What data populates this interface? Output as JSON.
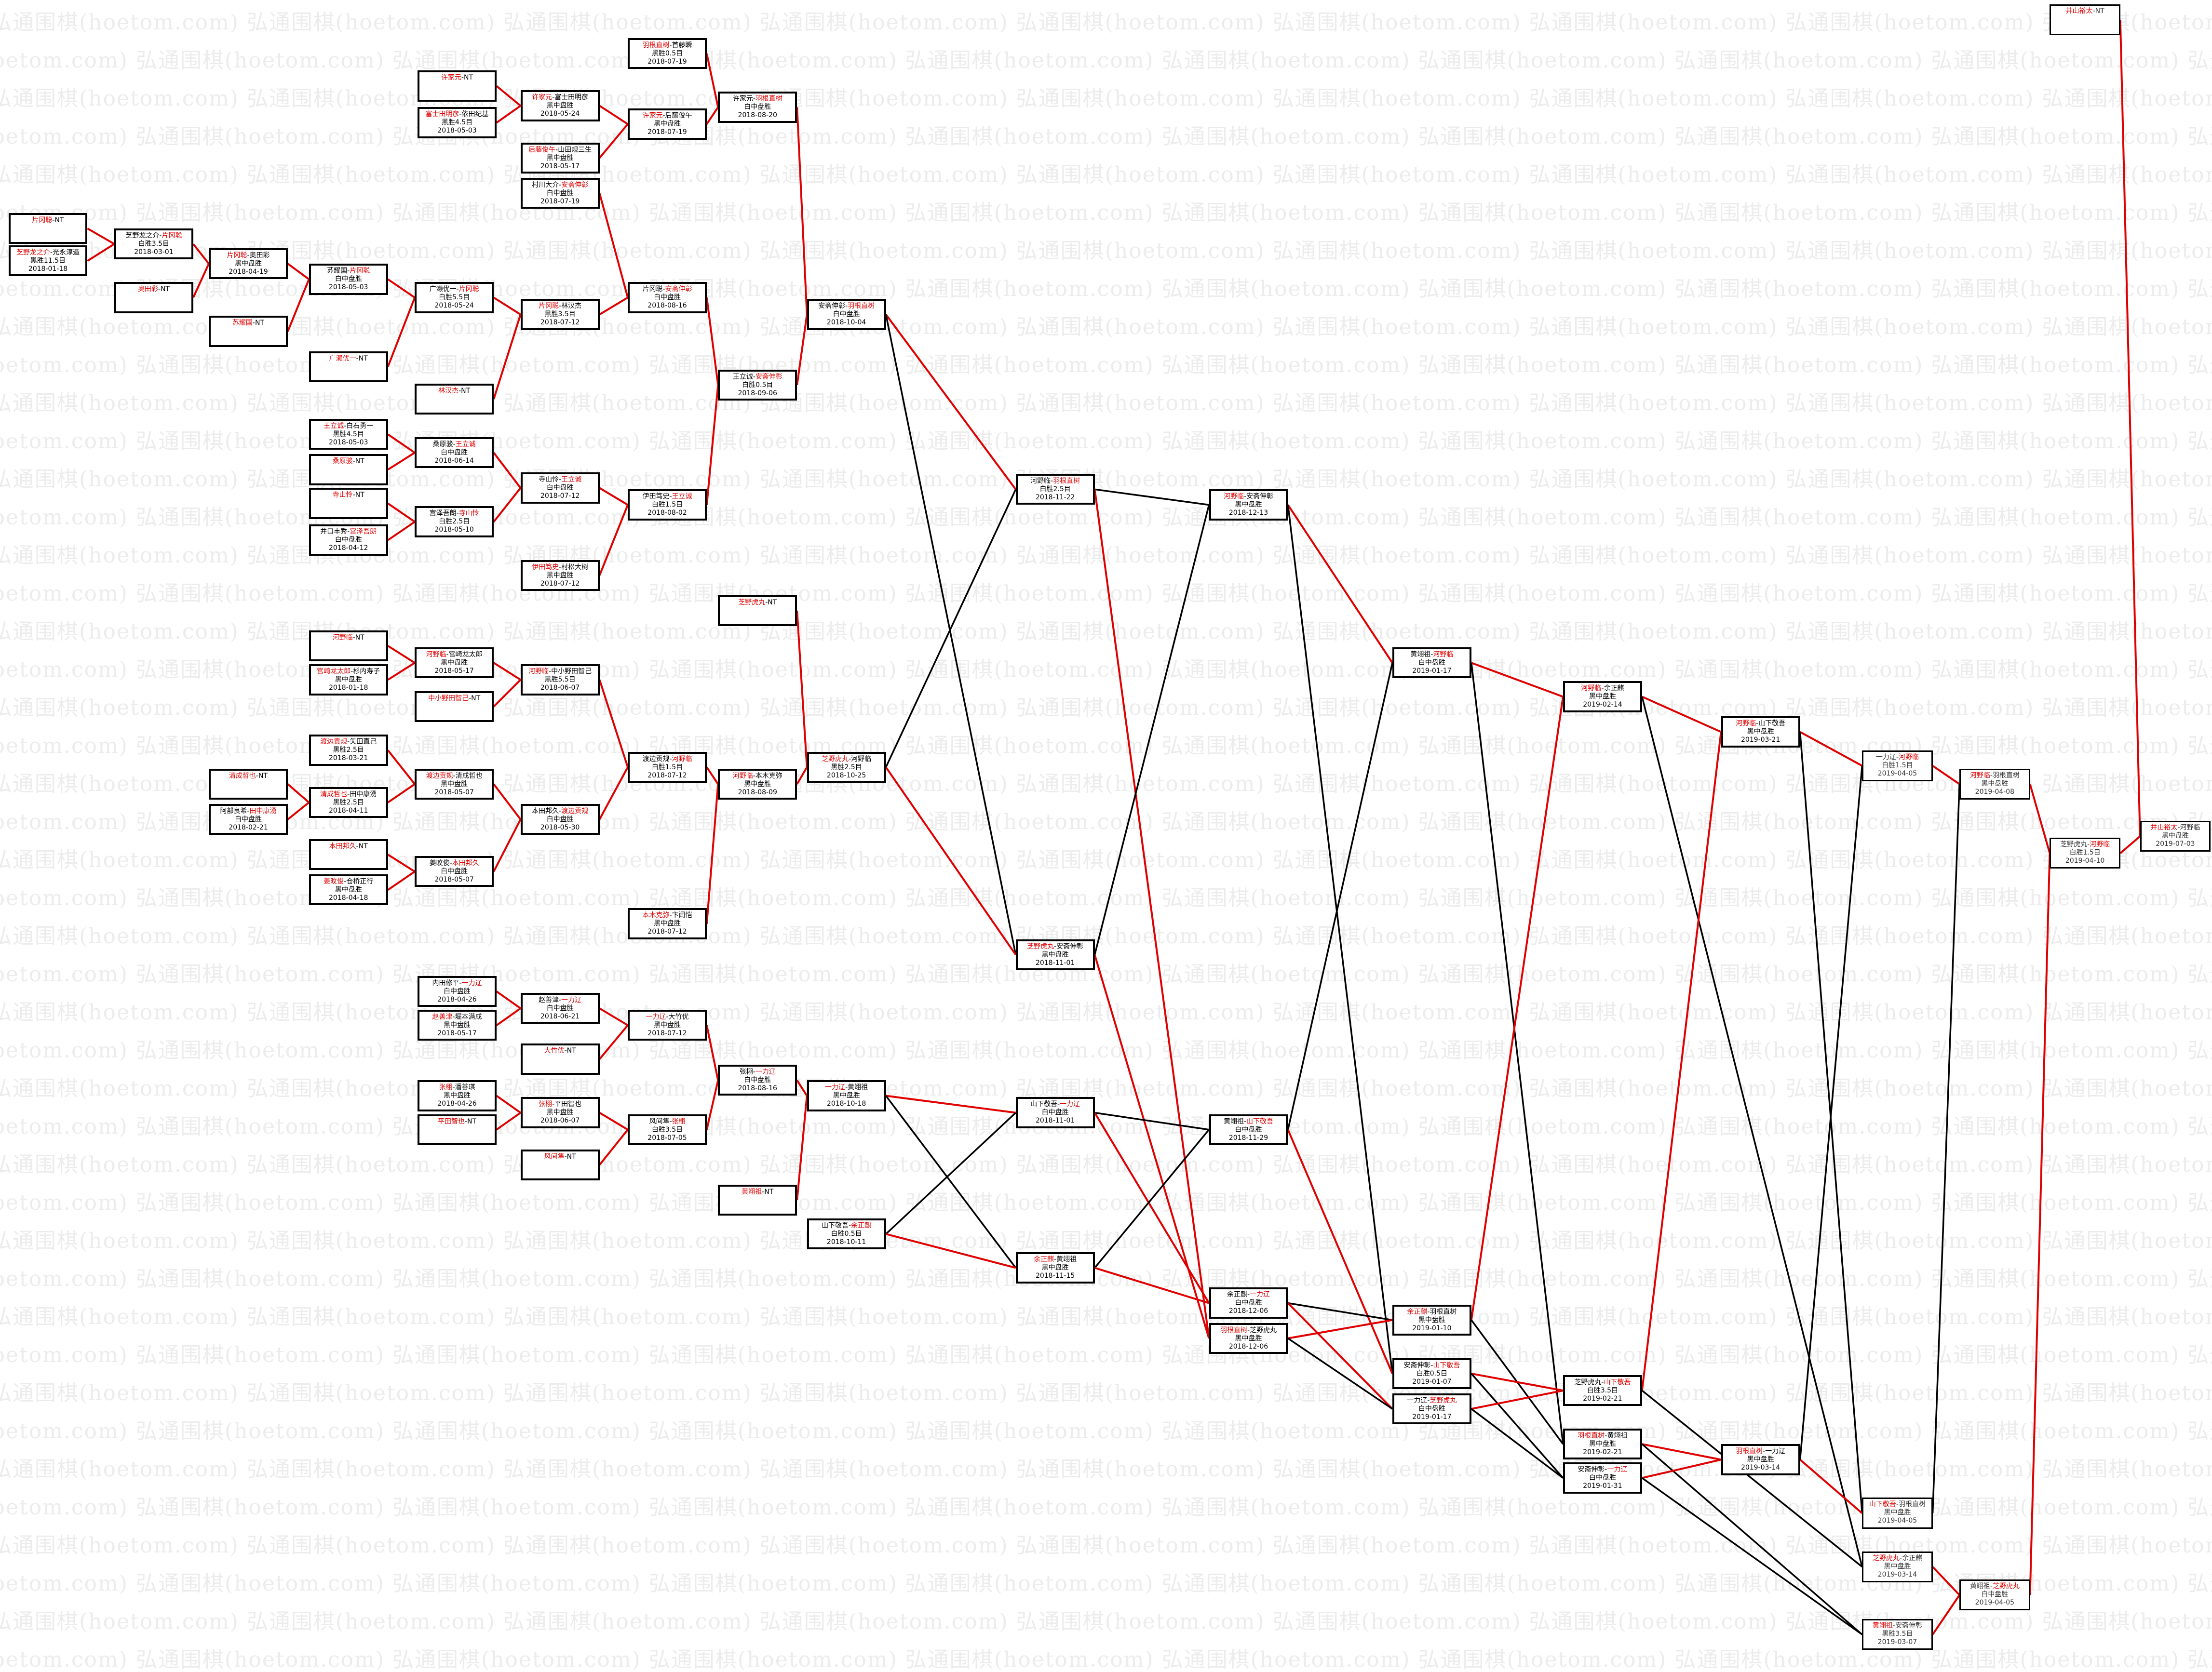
{
  "watermark": "弘通围棋(hoetom.com)",
  "colors": {
    "winner_path": "#e00000",
    "loser_path": "#000000",
    "box_border": "#000000"
  },
  "matches": {
    "a1": {
      "a": "片冈聪",
      "b": "NT",
      "red": 0
    },
    "a2": {
      "a": "芝野龙之介",
      "b": "光永淳造",
      "red": 0,
      "result": "黑胜11.5目",
      "date": "2018-01-18"
    },
    "b1": {
      "a": "芝野龙之介",
      "b": "片冈聪",
      "red": 1,
      "result": "白胜3.5目",
      "date": "2018-03-01"
    },
    "b2": {
      "a": "奥田彩",
      "b": "NT",
      "red": 0
    },
    "c1": {
      "a": "片冈聪",
      "b": "奥田彩",
      "red": 0,
      "result": "黑中盘胜",
      "date": "2018-04-19"
    },
    "c2": {
      "a": "苏耀国",
      "b": "NT",
      "red": 0
    },
    "d1": {
      "a": "苏耀国",
      "b": "片冈聪",
      "red": 1,
      "result": "白中盘胜",
      "date": "2018-05-03"
    },
    "d2": {
      "a": "广濑优一",
      "b": "NT",
      "red": 0
    },
    "e1": {
      "a": "广濑优一",
      "b": "片冈聪",
      "red": 1,
      "result": "白胜5.5目",
      "date": "2018-05-24"
    },
    "e2": {
      "a": "林汉杰",
      "b": "NT",
      "red": 0
    },
    "x1": {
      "a": "许家元",
      "b": "NT",
      "red": 0
    },
    "x2": {
      "a": "富士田明彦",
      "b": "依田纪基",
      "red": 0,
      "result": "黑胜4.5目",
      "date": "2018-05-03"
    },
    "f1": {
      "a": "许家元",
      "b": "富士田明彦",
      "red": 0,
      "result": "黑中盘胜",
      "date": "2018-05-24"
    },
    "f2": {
      "a": "后藤俊午",
      "b": "山田规三生",
      "red": 0,
      "result": "黑中盘胜",
      "date": "2018-05-17"
    },
    "f3": {
      "a": "村川大介",
      "b": "安斋伸彰",
      "red": 1,
      "result": "白中盘胜",
      "date": "2018-07-19"
    },
    "f4": {
      "a": "片冈聪",
      "b": "林汉杰",
      "red": 0,
      "result": "黑胜3.5目",
      "date": "2018-07-12"
    },
    "g1": {
      "a": "羽根直树",
      "b": "首藤瞬",
      "red": 0,
      "result": "黑胜0.5目",
      "date": "2018-07-19"
    },
    "g2": {
      "a": "许家元",
      "b": "后藤俊午",
      "red": 0,
      "result": "黑中盘胜",
      "date": "2018-07-19"
    },
    "g3": {
      "a": "片冈聪",
      "b": "安斋伸彰",
      "red": 1,
      "result": "白中盘胜",
      "date": "2018-08-16"
    },
    "h1": {
      "a": "许家元",
      "b": "羽根直树",
      "red": 1,
      "result": "白中盘胜",
      "date": "2018-08-20"
    },
    "h2": {
      "a": "王立诚",
      "b": "安斋伸彰",
      "red": 1,
      "result": "白胜0.5目",
      "date": "2018-09-06"
    },
    "i1": {
      "a": "安斋伸彰",
      "b": "羽根直树",
      "red": 1,
      "result": "白中盘胜",
      "date": "2018-10-04"
    },
    "w1": {
      "a": "王立诚",
      "b": "白石勇一",
      "red": 0,
      "result": "黑胜4.5目",
      "date": "2018-05-03"
    },
    "w2": {
      "a": "桑原骏",
      "b": "NT",
      "red": 0
    },
    "w3": {
      "a": "寺山怜",
      "b": "NT",
      "red": 0
    },
    "w4": {
      "a": "井口丰秀",
      "b": "宫泽吾朗",
      "red": 1,
      "result": "白中盘胜",
      "date": "2018-04-12"
    },
    "w5": {
      "a": "桑原骏",
      "b": "王立诚",
      "red": 1,
      "result": "白中盘胜",
      "date": "2018-06-14"
    },
    "w6": {
      "a": "宫泽吾朗",
      "b": "寺山怜",
      "red": 1,
      "result": "白胜2.5目",
      "date": "2018-05-10"
    },
    "w7": {
      "a": "寺山怜",
      "b": "王立诚",
      "red": 1,
      "result": "白中盘胜",
      "date": "2018-07-12"
    },
    "w8": {
      "a": "伊田笃史",
      "b": "村松大树",
      "red": 0,
      "result": "黑中盘胜",
      "date": "2018-07-12"
    },
    "w9": {
      "a": "伊田笃史",
      "b": "王立诚",
      "red": 1,
      "result": "白胜1.5目",
      "date": "2018-08-02"
    },
    "k1": {
      "a": "河野临",
      "b": "NT",
      "red": 0
    },
    "k2": {
      "a": "宫崎龙太郎",
      "b": "杉内寿子",
      "red": 0,
      "result": "黑中盘胜",
      "date": "2018-01-18"
    },
    "k3": {
      "a": "河野临",
      "b": "宫崎龙太郎",
      "red": 0,
      "result": "黑中盘胜",
      "date": "2018-05-17"
    },
    "k4": {
      "a": "中小野田智己",
      "b": "NT",
      "red": 0
    },
    "k5": {
      "a": "河野临",
      "b": "中小野田智己",
      "red": 0,
      "result": "黑胜5.5目",
      "date": "2018-06-07"
    },
    "k6": {
      "a": "渡边贡规",
      "b": "矢田直己",
      "red": 0,
      "result": "黑胜2.5目",
      "date": "2018-03-21"
    },
    "k7": {
      "a": "清成哲也",
      "b": "NT",
      "red": 0
    },
    "k8": {
      "a": "阿部良希",
      "b": "田中康湧",
      "red": 1,
      "result": "白中盘胜",
      "date": "2018-02-21"
    },
    "k9": {
      "a": "清成哲也",
      "b": "田中康湧",
      "red": 0,
      "result": "黑胜2.5目",
      "date": "2018-04-11"
    },
    "k10": {
      "a": "渡边贡规",
      "b": "清成哲也",
      "red": 0,
      "result": "黑中盘胜",
      "date": "2018-05-07"
    },
    "k11": {
      "a": "本田邦久",
      "b": "NT",
      "red": 0
    },
    "k12": {
      "a": "姜旼俊",
      "b": "仓桥正行",
      "red": 0,
      "result": "黑中盘胜",
      "date": "2018-04-18"
    },
    "k13": {
      "a": "姜旼俊",
      "b": "本田邦久",
      "red": 1,
      "result": "白中盘胜",
      "date": "2018-05-07"
    },
    "k14": {
      "a": "本田邦久",
      "b": "渡边贡规",
      "red": 1,
      "result": "白中盘胜",
      "date": "2018-05-30"
    },
    "k15": {
      "a": "渡边贡规",
      "b": "河野临",
      "red": 1,
      "result": "白胜1.5目",
      "date": "2018-07-12"
    },
    "k16": {
      "a": "本木克弥",
      "b": "卞闻恺",
      "red": 0,
      "result": "黑中盘胜",
      "date": "2018-07-12"
    },
    "k17": {
      "a": "河野临",
      "b": "本木克弥",
      "red": 0,
      "result": "黑中盘胜",
      "date": "2018-08-09"
    },
    "k18": {
      "a": "芝野虎丸",
      "b": "NT",
      "red": 0
    },
    "k19": {
      "a": "芝野虎丸",
      "b": "河野临",
      "red": 0,
      "result": "黑胜2.5目",
      "date": "2018-10-25"
    },
    "y1": {
      "a": "内田修平",
      "b": "一力辽",
      "red": 1,
      "result": "白中盘胜",
      "date": "2018-04-26"
    },
    "y2": {
      "a": "赵善津",
      "b": "堀本满成",
      "red": 0,
      "result": "黑中盘胜",
      "date": "2018-05-17"
    },
    "y3": {
      "a": "赵善津",
      "b": "一力辽",
      "red": 1,
      "result": "白中盘胜",
      "date": "2018-06-21"
    },
    "y4": {
      "a": "大竹优",
      "b": "NT",
      "red": 0
    },
    "y5": {
      "a": "一力辽",
      "b": "大竹优",
      "red": 0,
      "result": "黑中盘胜",
      "date": "2018-07-12"
    },
    "y6": {
      "a": "张栩",
      "b": "潘善琪",
      "red": 0,
      "result": "黑中盘胜",
      "date": "2018-04-26"
    },
    "y7": {
      "a": "平田智也",
      "b": "NT",
      "red": 0
    },
    "y8": {
      "a": "张栩",
      "b": "平田智也",
      "red": 0,
      "result": "黑中盘胜",
      "date": "2018-06-07"
    },
    "y9": {
      "a": "风间隼",
      "b": "NT",
      "red": 0
    },
    "y10": {
      "a": "风间隼",
      "b": "张栩",
      "red": 1,
      "result": "白胜3.5目",
      "date": "2018-07-05"
    },
    "y11": {
      "a": "张栩",
      "b": "一力辽",
      "red": 1,
      "result": "白中盘胜",
      "date": "2018-08-16"
    },
    "y12": {
      "a": "黄翊祖",
      "b": "NT",
      "red": 0
    },
    "y13": {
      "a": "一力辽",
      "b": "黄翊祖",
      "red": 0,
      "result": "黑中盘胜",
      "date": "2018-10-18"
    },
    "y14": {
      "a": "山下敬吾",
      "b": "余正麒",
      "red": 1,
      "result": "白胜0.5目",
      "date": "2018-10-11"
    },
    "r1": {
      "a": "河野临",
      "b": "羽根直树",
      "red": 1,
      "result": "白胜2.5目",
      "date": "2018-11-22"
    },
    "r2": {
      "a": "芝野虎丸",
      "b": "安斋伸彰",
      "red": 0,
      "result": "黑中盘胜",
      "date": "2018-11-01"
    },
    "r3": {
      "a": "山下敬吾",
      "b": "一力辽",
      "red": 1,
      "result": "白中盘胜",
      "date": "2018-11-01"
    },
    "r4": {
      "a": "余正麒",
      "b": "黄翊祖",
      "red": 0,
      "result": "黑中盘胜",
      "date": "2018-11-15"
    },
    "s1": {
      "a": "河野临",
      "b": "安斋伸彰",
      "red": 0,
      "result": "黑中盘胜",
      "date": "2018-12-13"
    },
    "s2": {
      "a": "黄翊祖",
      "b": "山下敬吾",
      "red": 1,
      "result": "白中盘胜",
      "date": "2018-11-29"
    },
    "s3": {
      "a": "余正麒",
      "b": "一力辽",
      "red": 1,
      "result": "白中盘胜",
      "date": "2018-12-06"
    },
    "s4": {
      "a": "羽根直树",
      "b": "芝野虎丸",
      "red": 0,
      "result": "黑中盘胜",
      "date": "2018-12-06"
    },
    "t1": {
      "a": "黄翊祖",
      "b": "河野临",
      "red": 1,
      "result": "白中盘胜",
      "date": "2019-01-17"
    },
    "t2": {
      "a": "余正麒",
      "b": "羽根直树",
      "red": 0,
      "result": "黑中盘胜",
      "date": "2019-01-10"
    },
    "t3": {
      "a": "安斋伸彰",
      "b": "山下敬吾",
      "red": 1,
      "result": "白胜0.5目",
      "date": "2019-01-07"
    },
    "t4": {
      "a": "一力辽",
      "b": "芝野虎丸",
      "red": 1,
      "result": "白中盘胜",
      "date": "2019-01-17"
    },
    "u1": {
      "a": "河野临",
      "b": "余正麒",
      "red": 0,
      "result": "黑中盘胜",
      "date": "2019-02-14"
    },
    "u2": {
      "a": "芝野虎丸",
      "b": "山下敬吾",
      "red": 1,
      "result": "白胜3.5目",
      "date": "2019-02-21"
    },
    "u3": {
      "a": "羽根直树",
      "b": "黄翊祖",
      "red": 0,
      "result": "黑中盘胜",
      "date": "2019-02-21"
    },
    "u4": {
      "a": "安斋伸彰",
      "b": "一力辽",
      "red": 1,
      "result": "白中盘胜",
      "date": "2019-01-31"
    },
    "v1": {
      "a": "河野临",
      "b": "山下敬吾",
      "red": 0,
      "result": "黑中盘胜",
      "date": "2019-03-21"
    },
    "v2": {
      "a": "羽根直树",
      "b": "一力辽",
      "red": 0,
      "result": "黑中盘胜",
      "date": "2019-03-14"
    },
    "z1": {
      "a": "一力辽",
      "b": "河野临",
      "red": 1,
      "result": "白胜1.5目",
      "date": "2019-04-05"
    },
    "z2": {
      "a": "山下敬吾",
      "b": "羽根直树",
      "red": 0,
      "result": "黑中盘胜",
      "date": "2019-04-05"
    },
    "z3": {
      "a": "芝野虎丸",
      "b": "余正麒",
      "red": 0,
      "result": "黑中盘胜",
      "date": "2019-03-14"
    },
    "z4": {
      "a": "黄翊祖",
      "b": "安斋伸彰",
      "red": 0,
      "result": "黑胜3.5目",
      "date": "2019-03-07"
    },
    "q1": {
      "a": "河野临",
      "b": "羽根直树",
      "red": 0,
      "result": "黑中盘胜",
      "date": "2019-04-08"
    },
    "q2": {
      "a": "黄翊祖",
      "b": "芝野虎丸",
      "red": 1,
      "result": "白中盘胜",
      "date": "2019-04-05"
    },
    "p1": {
      "a": "芝野虎丸",
      "b": "河野临",
      "red": 1,
      "result": "白胜1.5目",
      "date": "2019-04-10"
    },
    "n1": {
      "a": "井山裕太",
      "b": "NT",
      "red": 0
    },
    "o1": {
      "a": "井山裕太",
      "b": "河野临",
      "red": 0,
      "result": "黑中盘胜",
      "date": "2019-07-03"
    }
  },
  "edges": [
    [
      "a1",
      "b1",
      "red"
    ],
    [
      "a2",
      "b1",
      "red"
    ],
    [
      "b1",
      "c1",
      "red"
    ],
    [
      "b2",
      "c1",
      "red"
    ],
    [
      "c1",
      "d1",
      "red"
    ],
    [
      "c2",
      "d1",
      "red"
    ],
    [
      "d1",
      "e1",
      "red"
    ],
    [
      "d2",
      "e1",
      "red"
    ],
    [
      "e1",
      "f4",
      "red"
    ],
    [
      "e2",
      "f4",
      "red"
    ],
    [
      "f4",
      "g3",
      "red"
    ],
    [
      "f3",
      "g3",
      "red"
    ],
    [
      "g3",
      "h2",
      "red"
    ],
    [
      "w9",
      "h2",
      "red"
    ],
    [
      "h2",
      "i1",
      "red"
    ],
    [
      "h1",
      "i1",
      "red"
    ],
    [
      "x1",
      "f1",
      "red"
    ],
    [
      "x2",
      "f1",
      "red"
    ],
    [
      "f1",
      "g2",
      "red"
    ],
    [
      "f2",
      "g2",
      "red"
    ],
    [
      "g2",
      "h1",
      "red"
    ],
    [
      "g1",
      "h1",
      "red"
    ],
    [
      "w1",
      "w5",
      "red"
    ],
    [
      "w2",
      "w5",
      "red"
    ],
    [
      "w3",
      "w6",
      "red"
    ],
    [
      "w4",
      "w6",
      "red"
    ],
    [
      "w5",
      "w7",
      "red"
    ],
    [
      "w6",
      "w7",
      "red"
    ],
    [
      "w7",
      "w9",
      "red"
    ],
    [
      "w8",
      "w9",
      "red"
    ],
    [
      "k1",
      "k3",
      "red"
    ],
    [
      "k2",
      "k3",
      "red"
    ],
    [
      "k3",
      "k5",
      "red"
    ],
    [
      "k4",
      "k5",
      "red"
    ],
    [
      "k5",
      "k15",
      "red"
    ],
    [
      "k7",
      "k9",
      "red"
    ],
    [
      "k8",
      "k9",
      "red"
    ],
    [
      "k6",
      "k10",
      "red"
    ],
    [
      "k9",
      "k10",
      "red"
    ],
    [
      "k10",
      "k14",
      "red"
    ],
    [
      "k11",
      "k13",
      "red"
    ],
    [
      "k12",
      "k13",
      "red"
    ],
    [
      "k13",
      "k14",
      "red"
    ],
    [
      "k14",
      "k15",
      "red"
    ],
    [
      "k15",
      "k17",
      "red"
    ],
    [
      "k16",
      "k17",
      "red"
    ],
    [
      "k17",
      "k19",
      "red"
    ],
    [
      "k18",
      "k19",
      "red"
    ],
    [
      "y1",
      "y3",
      "red"
    ],
    [
      "y2",
      "y3",
      "red"
    ],
    [
      "y3",
      "y5",
      "red"
    ],
    [
      "y4",
      "y5",
      "red"
    ],
    [
      "y6",
      "y8",
      "red"
    ],
    [
      "y7",
      "y8",
      "red"
    ],
    [
      "y8",
      "y10",
      "red"
    ],
    [
      "y9",
      "y10",
      "red"
    ],
    [
      "y5",
      "y11",
      "red"
    ],
    [
      "y10",
      "y11",
      "red"
    ],
    [
      "y11",
      "y13",
      "red"
    ],
    [
      "y12",
      "y13",
      "red"
    ],
    [
      "i1",
      "r1",
      "red"
    ],
    [
      "i1",
      "r2",
      "black"
    ],
    [
      "k19",
      "r1",
      "black"
    ],
    [
      "k19",
      "r2",
      "red"
    ],
    [
      "y13",
      "r3",
      "red"
    ],
    [
      "y13",
      "r4",
      "black"
    ],
    [
      "y14",
      "r3",
      "black"
    ],
    [
      "y14",
      "r4",
      "red"
    ],
    [
      "r1",
      "s1",
      "black"
    ],
    [
      "r1",
      "s4",
      "red"
    ],
    [
      "r2",
      "s1",
      "black"
    ],
    [
      "r2",
      "s4",
      "red"
    ],
    [
      "r3",
      "s2",
      "black"
    ],
    [
      "r3",
      "s3",
      "red"
    ],
    [
      "r4",
      "s2",
      "black"
    ],
    [
      "r4",
      "s3",
      "red"
    ],
    [
      "s1",
      "t1",
      "red"
    ],
    [
      "s1",
      "t3",
      "black"
    ],
    [
      "s2",
      "t1",
      "black"
    ],
    [
      "s2",
      "t3",
      "red"
    ],
    [
      "s3",
      "t2",
      "black"
    ],
    [
      "s3",
      "t4",
      "red"
    ],
    [
      "s4",
      "t2",
      "red"
    ],
    [
      "s4",
      "t4",
      "black"
    ],
    [
      "t1",
      "u1",
      "red"
    ],
    [
      "t1",
      "u3",
      "black"
    ],
    [
      "t2",
      "u1",
      "red"
    ],
    [
      "t2",
      "u3",
      "black"
    ],
    [
      "t3",
      "u2",
      "red"
    ],
    [
      "t3",
      "u4",
      "black"
    ],
    [
      "t4",
      "u2",
      "red"
    ],
    [
      "t4",
      "u4",
      "black"
    ],
    [
      "u1",
      "v1",
      "red"
    ],
    [
      "u1",
      "z3",
      "black"
    ],
    [
      "u2",
      "v1",
      "red"
    ],
    [
      "u2",
      "z3",
      "black"
    ],
    [
      "u3",
      "v2",
      "red"
    ],
    [
      "u3",
      "z4",
      "black"
    ],
    [
      "u4",
      "v2",
      "red"
    ],
    [
      "u4",
      "z4",
      "black"
    ],
    [
      "v1",
      "z1",
      "red"
    ],
    [
      "v1",
      "z2",
      "black"
    ],
    [
      "v2",
      "z2",
      "red"
    ],
    [
      "v2",
      "z1",
      "black"
    ],
    [
      "z1",
      "q1",
      "red"
    ],
    [
      "z2",
      "q1",
      "black"
    ],
    [
      "z3",
      "q2",
      "red"
    ],
    [
      "z4",
      "q2",
      "red"
    ],
    [
      "q1",
      "p1",
      "red"
    ],
    [
      "q2",
      "p1",
      "red"
    ],
    [
      "p1",
      "o1",
      "red"
    ],
    [
      "n1",
      "o1",
      "red"
    ]
  ]
}
